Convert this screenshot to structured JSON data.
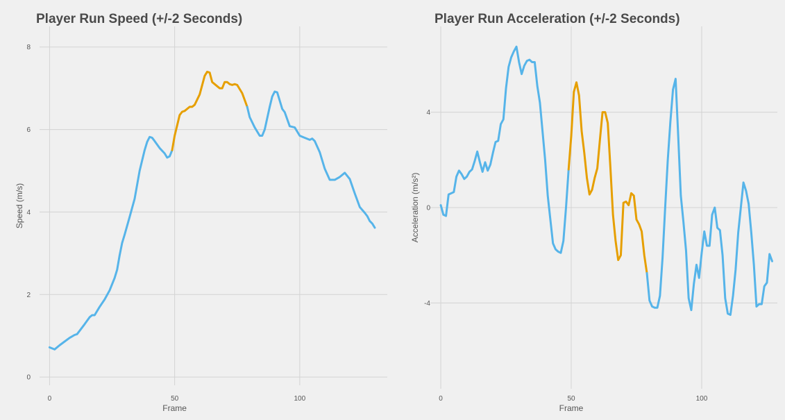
{
  "chart_data": [
    {
      "type": "line",
      "title": "Player Run Speed (+/-2 Seconds)",
      "xlabel": "Frame",
      "ylabel": "Speed (m/s)",
      "xlim": [
        -4,
        135
      ],
      "ylim": [
        -0.2,
        8.5
      ],
      "x_ticks": [
        0,
        50,
        100
      ],
      "y_ticks": [
        0,
        2,
        4,
        6,
        8
      ],
      "grid": true,
      "highlight_range": [
        50,
        79
      ],
      "colors": {
        "base": "#56b4e9",
        "highlight": "#e69f00",
        "grid": "#d3d3d3"
      },
      "points": [
        [
          0,
          0.72
        ],
        [
          2,
          0.67
        ],
        [
          4,
          0.77
        ],
        [
          6,
          0.86
        ],
        [
          8,
          0.95
        ],
        [
          10,
          1.02
        ],
        [
          11,
          1.04
        ],
        [
          12,
          1.12
        ],
        [
          14,
          1.28
        ],
        [
          16,
          1.45
        ],
        [
          17,
          1.5
        ],
        [
          18,
          1.5
        ],
        [
          20,
          1.7
        ],
        [
          22,
          1.88
        ],
        [
          24,
          2.1
        ],
        [
          26,
          2.4
        ],
        [
          27,
          2.6
        ],
        [
          28,
          2.95
        ],
        [
          29,
          3.25
        ],
        [
          30,
          3.45
        ],
        [
          32,
          3.88
        ],
        [
          34,
          4.32
        ],
        [
          36,
          5.0
        ],
        [
          38,
          5.5
        ],
        [
          39,
          5.7
        ],
        [
          40,
          5.82
        ],
        [
          41,
          5.8
        ],
        [
          42,
          5.72
        ],
        [
          44,
          5.55
        ],
        [
          46,
          5.42
        ],
        [
          47,
          5.32
        ],
        [
          48,
          5.35
        ],
        [
          49,
          5.5
        ],
        [
          50,
          5.85
        ],
        [
          52,
          6.35
        ],
        [
          53,
          6.43
        ],
        [
          54,
          6.45
        ],
        [
          56,
          6.55
        ],
        [
          57,
          6.55
        ],
        [
          58,
          6.6
        ],
        [
          60,
          6.85
        ],
        [
          62,
          7.3
        ],
        [
          63,
          7.4
        ],
        [
          64,
          7.38
        ],
        [
          65,
          7.15
        ],
        [
          66,
          7.1
        ],
        [
          67,
          7.05
        ],
        [
          68,
          7.0
        ],
        [
          69,
          7.0
        ],
        [
          70,
          7.15
        ],
        [
          71,
          7.15
        ],
        [
          72,
          7.1
        ],
        [
          73,
          7.08
        ],
        [
          74,
          7.1
        ],
        [
          75,
          7.08
        ],
        [
          77,
          6.88
        ],
        [
          79,
          6.55
        ],
        [
          80,
          6.3
        ],
        [
          82,
          6.05
        ],
        [
          84,
          5.85
        ],
        [
          85,
          5.85
        ],
        [
          86,
          6.0
        ],
        [
          88,
          6.55
        ],
        [
          89,
          6.8
        ],
        [
          90,
          6.92
        ],
        [
          91,
          6.9
        ],
        [
          92,
          6.7
        ],
        [
          93,
          6.5
        ],
        [
          94,
          6.42
        ],
        [
          95,
          6.25
        ],
        [
          96,
          6.08
        ],
        [
          98,
          6.05
        ],
        [
          100,
          5.85
        ],
        [
          102,
          5.8
        ],
        [
          104,
          5.75
        ],
        [
          105,
          5.78
        ],
        [
          106,
          5.72
        ],
        [
          108,
          5.45
        ],
        [
          110,
          5.05
        ],
        [
          112,
          4.78
        ],
        [
          114,
          4.78
        ],
        [
          116,
          4.85
        ],
        [
          118,
          4.95
        ],
        [
          120,
          4.8
        ],
        [
          122,
          4.45
        ],
        [
          124,
          4.12
        ],
        [
          126,
          3.98
        ],
        [
          127,
          3.9
        ],
        [
          128,
          3.78
        ],
        [
          129,
          3.72
        ],
        [
          130,
          3.62
        ]
      ]
    },
    {
      "type": "line",
      "title": "Player Run Acceleration (+/-2 Seconds)",
      "xlabel": "Frame",
      "ylabel": "Acceleration (m/s²)",
      "xlim": [
        -4,
        129
      ],
      "ylim": [
        -7.6,
        7.6
      ],
      "x_ticks": [
        0,
        50,
        100
      ],
      "y_ticks": [
        -4,
        0,
        4
      ],
      "grid": true,
      "highlight_range": [
        50,
        79
      ],
      "colors": {
        "base": "#56b4e9",
        "highlight": "#e69f00",
        "grid": "#d3d3d3"
      },
      "points": [
        [
          0,
          0.1
        ],
        [
          1,
          -0.3
        ],
        [
          2,
          -0.35
        ],
        [
          3,
          0.55
        ],
        [
          5,
          0.65
        ],
        [
          6,
          1.3
        ],
        [
          7,
          1.55
        ],
        [
          8,
          1.4
        ],
        [
          9,
          1.2
        ],
        [
          10,
          1.3
        ],
        [
          11,
          1.5
        ],
        [
          12,
          1.6
        ],
        [
          13,
          1.95
        ],
        [
          14,
          2.35
        ],
        [
          15,
          1.9
        ],
        [
          16,
          1.5
        ],
        [
          17,
          1.9
        ],
        [
          18,
          1.55
        ],
        [
          19,
          1.8
        ],
        [
          20,
          2.3
        ],
        [
          21,
          2.75
        ],
        [
          22,
          2.8
        ],
        [
          23,
          3.5
        ],
        [
          24,
          3.7
        ],
        [
          25,
          5.0
        ],
        [
          26,
          5.9
        ],
        [
          27,
          6.3
        ],
        [
          28,
          6.55
        ],
        [
          29,
          6.75
        ],
        [
          30,
          6.1
        ],
        [
          31,
          5.6
        ],
        [
          32,
          5.95
        ],
        [
          33,
          6.15
        ],
        [
          34,
          6.2
        ],
        [
          35,
          6.1
        ],
        [
          36,
          6.1
        ],
        [
          37,
          5.1
        ],
        [
          38,
          4.4
        ],
        [
          39,
          3.2
        ],
        [
          40,
          2.0
        ],
        [
          41,
          0.5
        ],
        [
          42,
          -0.5
        ],
        [
          43,
          -1.5
        ],
        [
          44,
          -1.75
        ],
        [
          45,
          -1.85
        ],
        [
          46,
          -1.9
        ],
        [
          47,
          -1.4
        ],
        [
          48,
          0.0
        ],
        [
          49,
          1.6
        ],
        [
          50,
          3.0
        ],
        [
          51,
          4.85
        ],
        [
          52,
          5.25
        ],
        [
          53,
          4.7
        ],
        [
          54,
          3.2
        ],
        [
          55,
          2.3
        ],
        [
          56,
          1.25
        ],
        [
          57,
          0.55
        ],
        [
          58,
          0.75
        ],
        [
          59,
          1.25
        ],
        [
          60,
          1.65
        ],
        [
          61,
          2.85
        ],
        [
          62,
          4.0
        ],
        [
          63,
          4.0
        ],
        [
          64,
          3.55
        ],
        [
          65,
          1.7
        ],
        [
          66,
          -0.3
        ],
        [
          67,
          -1.4
        ],
        [
          68,
          -2.2
        ],
        [
          69,
          -2.0
        ],
        [
          70,
          0.2
        ],
        [
          71,
          0.25
        ],
        [
          72,
          0.1
        ],
        [
          73,
          0.6
        ],
        [
          74,
          0.5
        ],
        [
          75,
          -0.5
        ],
        [
          76,
          -0.7
        ],
        [
          77,
          -1.0
        ],
        [
          78,
          -2.0
        ],
        [
          79,
          -2.75
        ],
        [
          80,
          -3.9
        ],
        [
          81,
          -4.15
        ],
        [
          82,
          -4.2
        ],
        [
          83,
          -4.2
        ],
        [
          84,
          -3.7
        ],
        [
          85,
          -2.1
        ],
        [
          86,
          0.0
        ],
        [
          87,
          2.0
        ],
        [
          88,
          3.6
        ],
        [
          89,
          4.95
        ],
        [
          90,
          5.4
        ],
        [
          91,
          3.0
        ],
        [
          92,
          0.5
        ],
        [
          93,
          -0.6
        ],
        [
          94,
          -1.8
        ],
        [
          95,
          -3.8
        ],
        [
          96,
          -4.3
        ],
        [
          97,
          -3.2
        ],
        [
          98,
          -2.4
        ],
        [
          99,
          -2.95
        ],
        [
          100,
          -1.9
        ],
        [
          101,
          -1.0
        ],
        [
          102,
          -1.6
        ],
        [
          103,
          -1.6
        ],
        [
          104,
          -0.3
        ],
        [
          105,
          0.0
        ],
        [
          106,
          -0.85
        ],
        [
          107,
          -0.95
        ],
        [
          108,
          -2.0
        ],
        [
          109,
          -3.8
        ],
        [
          110,
          -4.45
        ],
        [
          111,
          -4.5
        ],
        [
          112,
          -3.7
        ],
        [
          113,
          -2.6
        ],
        [
          114,
          -1.05
        ],
        [
          115,
          0.0
        ],
        [
          116,
          1.05
        ],
        [
          117,
          0.7
        ],
        [
          118,
          0.15
        ],
        [
          119,
          -1.05
        ],
        [
          120,
          -2.4
        ],
        [
          121,
          -4.15
        ],
        [
          122,
          -4.05
        ],
        [
          123,
          -4.05
        ],
        [
          124,
          -3.3
        ],
        [
          125,
          -3.15
        ],
        [
          126,
          -1.95
        ],
        [
          127,
          -2.25
        ]
      ]
    }
  ]
}
